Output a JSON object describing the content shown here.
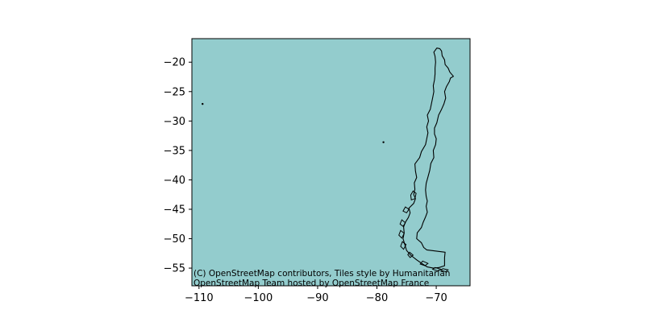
{
  "chart_data": {
    "type": "map",
    "title": "",
    "xlabel": "",
    "ylabel": "",
    "xlim": [
      -111.2,
      -64.3
    ],
    "ylim": [
      -58.0,
      -16.0
    ],
    "x_ticks": [
      -110,
      -100,
      -90,
      -80,
      -70
    ],
    "y_ticks": [
      -20,
      -25,
      -30,
      -35,
      -40,
      -45,
      -50,
      -55
    ],
    "x_tick_labels": [
      "−110",
      "−100",
      "−90",
      "−80",
      "−70"
    ],
    "y_tick_labels": [
      "−20",
      "−25",
      "−30",
      "−35",
      "−40",
      "−45",
      "−50",
      "−55"
    ],
    "grid": false,
    "colors": {
      "background": "#93cccd",
      "outline": "#000000"
    },
    "islands": [
      {
        "lon": -109.4,
        "lat": -27.1
      },
      {
        "lon": -78.9,
        "lat": -33.6
      }
    ],
    "attribution": [
      "(C) OpenStreetMap contributors, Tiles style by Humanitarian",
      "OpenStreetMap Team hosted by OpenStreetMap France"
    ]
  }
}
